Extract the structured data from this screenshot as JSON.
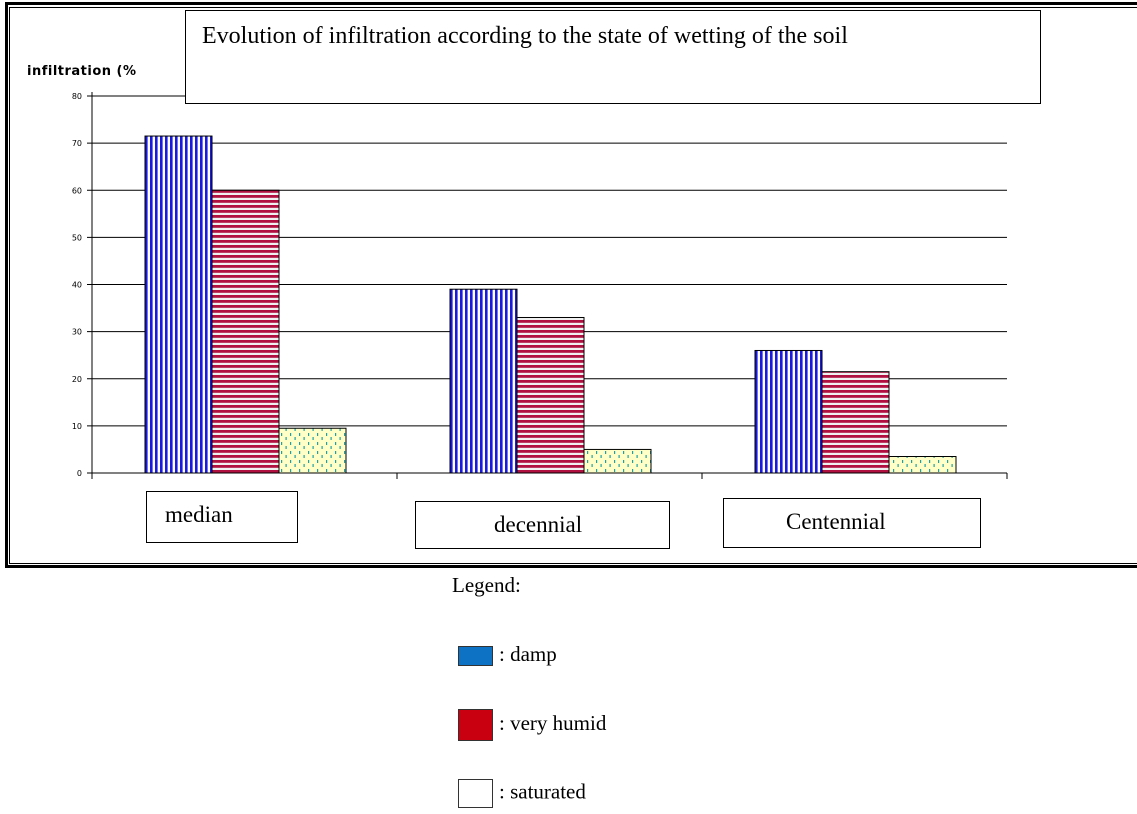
{
  "chart_data": {
    "type": "bar",
    "title": "Evolution of infiltration according to the state of wetting of the soil",
    "ylabel": "infiltration (%",
    "xlabel": "",
    "categories": [
      "median",
      "decennial",
      "Centennial"
    ],
    "series": [
      {
        "name": "damp",
        "values": [
          71.5,
          39,
          26
        ],
        "color": "#1a1adf"
      },
      {
        "name": "very humid",
        "values": [
          60,
          33,
          21.5
        ],
        "color": "#b01040"
      },
      {
        "name": "saturated",
        "values": [
          9.5,
          5,
          3.5
        ],
        "color": "#ffffc8"
      }
    ],
    "ylim": [
      0,
      80
    ],
    "yticks": [
      0,
      10,
      20,
      30,
      40,
      50,
      60,
      70,
      80
    ],
    "grid": true
  },
  "legend": {
    "title": "Legend:",
    "items": [
      {
        "label": ": damp",
        "color": "#0e72c4"
      },
      {
        "label": ": very humid",
        "color": "#c8000f"
      },
      {
        "label": ": saturated",
        "color": "#ffffff"
      }
    ]
  }
}
